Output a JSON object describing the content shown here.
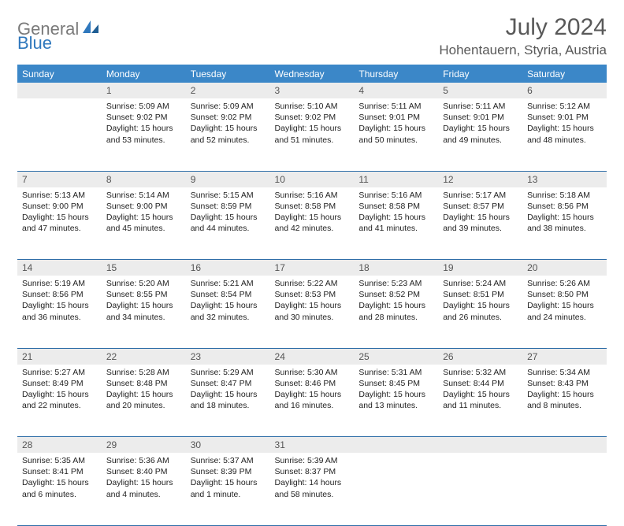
{
  "brand": {
    "part1": "General",
    "part2": "Blue"
  },
  "title": "July 2024",
  "location": "Hohentauern, Styria, Austria",
  "colors": {
    "header_bg": "#3b87c8",
    "header_text": "#ffffff",
    "daynum_bg": "#ececec",
    "rule": "#2f6ea8",
    "title_color": "#595959",
    "brand_gray": "#7a7a7a",
    "brand_blue": "#2f78bd"
  },
  "weekdays": [
    "Sunday",
    "Monday",
    "Tuesday",
    "Wednesday",
    "Thursday",
    "Friday",
    "Saturday"
  ],
  "weeks": [
    {
      "nums": [
        "",
        "1",
        "2",
        "3",
        "4",
        "5",
        "6"
      ],
      "cells": [
        "",
        "Sunrise: 5:09 AM\nSunset: 9:02 PM\nDaylight: 15 hours and 53 minutes.",
        "Sunrise: 5:09 AM\nSunset: 9:02 PM\nDaylight: 15 hours and 52 minutes.",
        "Sunrise: 5:10 AM\nSunset: 9:02 PM\nDaylight: 15 hours and 51 minutes.",
        "Sunrise: 5:11 AM\nSunset: 9:01 PM\nDaylight: 15 hours and 50 minutes.",
        "Sunrise: 5:11 AM\nSunset: 9:01 PM\nDaylight: 15 hours and 49 minutes.",
        "Sunrise: 5:12 AM\nSunset: 9:01 PM\nDaylight: 15 hours and 48 minutes."
      ]
    },
    {
      "nums": [
        "7",
        "8",
        "9",
        "10",
        "11",
        "12",
        "13"
      ],
      "cells": [
        "Sunrise: 5:13 AM\nSunset: 9:00 PM\nDaylight: 15 hours and 47 minutes.",
        "Sunrise: 5:14 AM\nSunset: 9:00 PM\nDaylight: 15 hours and 45 minutes.",
        "Sunrise: 5:15 AM\nSunset: 8:59 PM\nDaylight: 15 hours and 44 minutes.",
        "Sunrise: 5:16 AM\nSunset: 8:58 PM\nDaylight: 15 hours and 42 minutes.",
        "Sunrise: 5:16 AM\nSunset: 8:58 PM\nDaylight: 15 hours and 41 minutes.",
        "Sunrise: 5:17 AM\nSunset: 8:57 PM\nDaylight: 15 hours and 39 minutes.",
        "Sunrise: 5:18 AM\nSunset: 8:56 PM\nDaylight: 15 hours and 38 minutes."
      ]
    },
    {
      "nums": [
        "14",
        "15",
        "16",
        "17",
        "18",
        "19",
        "20"
      ],
      "cells": [
        "Sunrise: 5:19 AM\nSunset: 8:56 PM\nDaylight: 15 hours and 36 minutes.",
        "Sunrise: 5:20 AM\nSunset: 8:55 PM\nDaylight: 15 hours and 34 minutes.",
        "Sunrise: 5:21 AM\nSunset: 8:54 PM\nDaylight: 15 hours and 32 minutes.",
        "Sunrise: 5:22 AM\nSunset: 8:53 PM\nDaylight: 15 hours and 30 minutes.",
        "Sunrise: 5:23 AM\nSunset: 8:52 PM\nDaylight: 15 hours and 28 minutes.",
        "Sunrise: 5:24 AM\nSunset: 8:51 PM\nDaylight: 15 hours and 26 minutes.",
        "Sunrise: 5:26 AM\nSunset: 8:50 PM\nDaylight: 15 hours and 24 minutes."
      ]
    },
    {
      "nums": [
        "21",
        "22",
        "23",
        "24",
        "25",
        "26",
        "27"
      ],
      "cells": [
        "Sunrise: 5:27 AM\nSunset: 8:49 PM\nDaylight: 15 hours and 22 minutes.",
        "Sunrise: 5:28 AM\nSunset: 8:48 PM\nDaylight: 15 hours and 20 minutes.",
        "Sunrise: 5:29 AM\nSunset: 8:47 PM\nDaylight: 15 hours and 18 minutes.",
        "Sunrise: 5:30 AM\nSunset: 8:46 PM\nDaylight: 15 hours and 16 minutes.",
        "Sunrise: 5:31 AM\nSunset: 8:45 PM\nDaylight: 15 hours and 13 minutes.",
        "Sunrise: 5:32 AM\nSunset: 8:44 PM\nDaylight: 15 hours and 11 minutes.",
        "Sunrise: 5:34 AM\nSunset: 8:43 PM\nDaylight: 15 hours and 8 minutes."
      ]
    },
    {
      "nums": [
        "28",
        "29",
        "30",
        "31",
        "",
        "",
        ""
      ],
      "cells": [
        "Sunrise: 5:35 AM\nSunset: 8:41 PM\nDaylight: 15 hours and 6 minutes.",
        "Sunrise: 5:36 AM\nSunset: 8:40 PM\nDaylight: 15 hours and 4 minutes.",
        "Sunrise: 5:37 AM\nSunset: 8:39 PM\nDaylight: 15 hours and 1 minute.",
        "Sunrise: 5:39 AM\nSunset: 8:37 PM\nDaylight: 14 hours and 58 minutes.",
        "",
        "",
        ""
      ]
    }
  ]
}
